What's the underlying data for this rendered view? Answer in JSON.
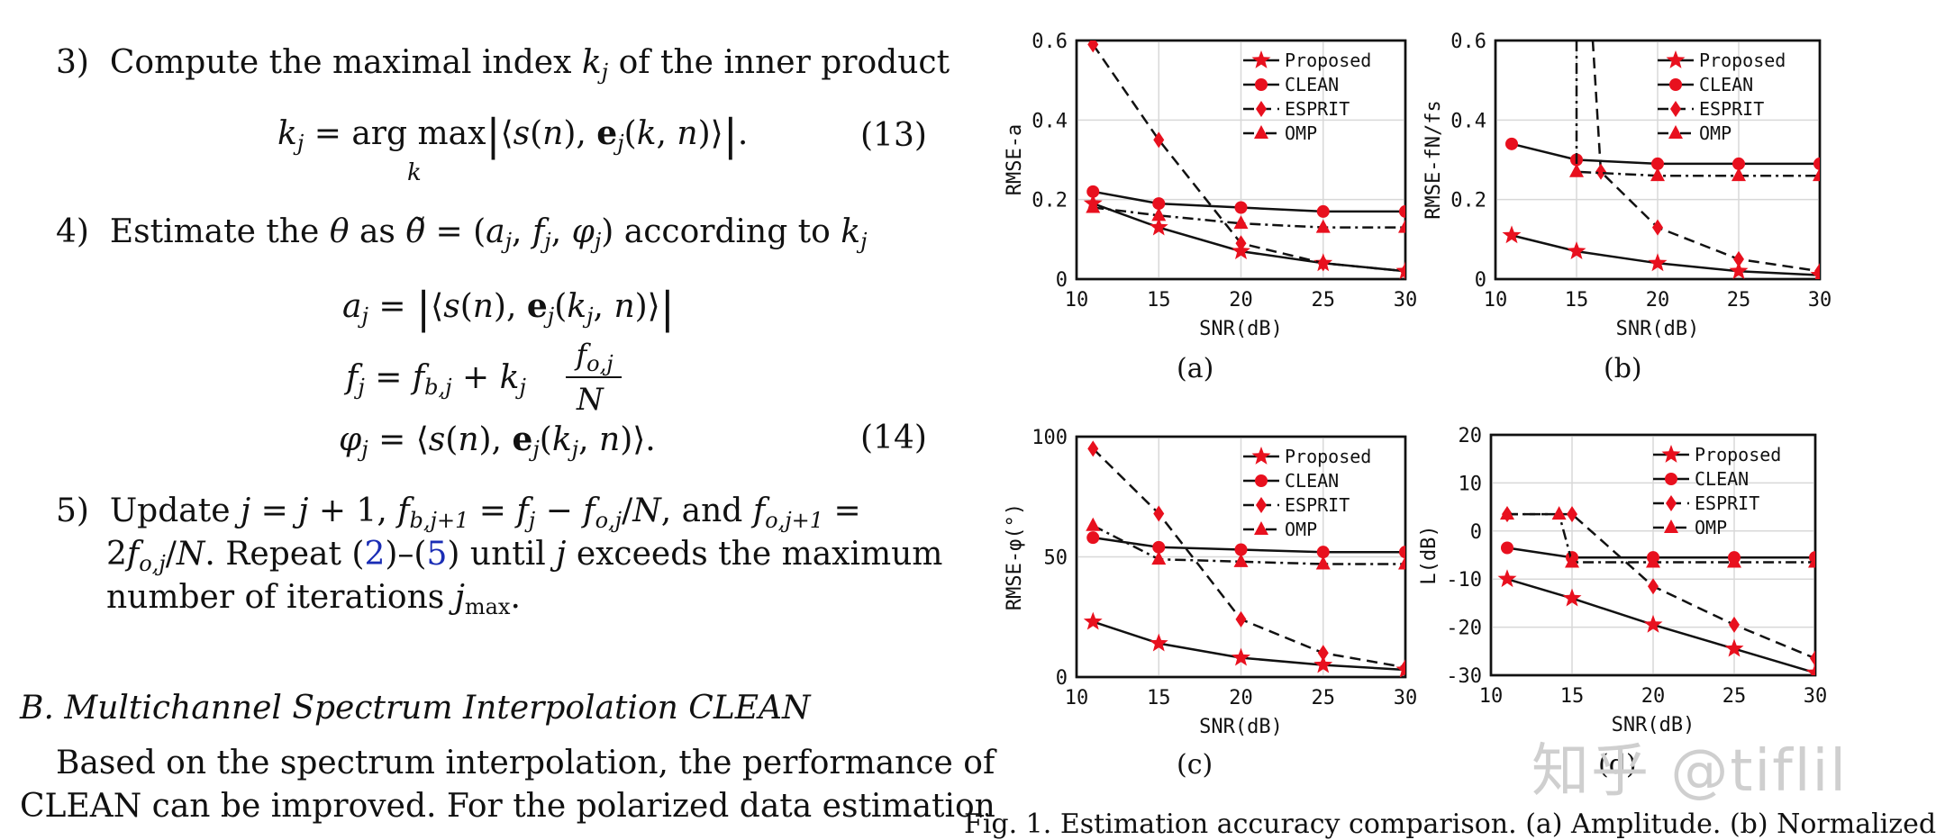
{
  "steps": {
    "s3_num": "3)",
    "s3_text_a": "Compute the maximal index",
    "s3_text_b": "of the inner product",
    "eq13_num": "(13)",
    "s4_num": "4)",
    "s4_text_a": "Estimate the",
    "s4_text_b": "according to",
    "eq14_num": "(14)",
    "s5_num": "5)",
    "s5_text_a": "Update",
    "s5_text_b": "and",
    "s5_text_c": ". Repeat (",
    "s5_ref1": "2",
    "s5_text_d": ")–(",
    "s5_ref2": "5",
    "s5_text_e": ") until",
    "s5_text_f": "exceeds the maximum",
    "s5_text_g": "number of iterations"
  },
  "section": {
    "title": "B. Multichannel Spectrum Interpolation CLEAN"
  },
  "paragraph": {
    "line1": "Based on the spectrum interpolation, the performance of",
    "line2": "CLEAN can be improved. For the polarized data estimation"
  },
  "figure": {
    "caption": "Fig. 1.     Estimation accuracy comparison. (a) Amplitude. (b) Normalized",
    "sublabels": [
      "(a)",
      "(b)",
      "(c)",
      "(d)"
    ],
    "watermark": "知乎 @tiflil"
  },
  "chart_data": [
    {
      "type": "line",
      "panel": "a",
      "xlabel": "SNR(dB)",
      "ylabel": "RMSE-a",
      "xlim": [
        10,
        30
      ],
      "ylim": [
        0,
        0.6
      ],
      "xticks": [
        "10",
        "15",
        "20",
        "25",
        "30"
      ],
      "yticks": [
        "0",
        "0.2",
        "0.4",
        "0.6"
      ],
      "grid": true,
      "legend_position": "top-right",
      "series": [
        {
          "name": "Proposed",
          "marker": "star",
          "dash": "solid",
          "x": [
            11,
            15,
            20,
            25,
            30
          ],
          "y": [
            0.19,
            0.13,
            0.07,
            0.04,
            0.02
          ]
        },
        {
          "name": "CLEAN",
          "marker": "circle",
          "dash": "solid",
          "x": [
            11,
            15,
            20,
            25,
            30
          ],
          "y": [
            0.22,
            0.19,
            0.18,
            0.17,
            0.17
          ]
        },
        {
          "name": "ESPRIT",
          "marker": "diamond",
          "dash": "dashed",
          "x": [
            11,
            15,
            20,
            25,
            30
          ],
          "y": [
            0.59,
            0.35,
            0.09,
            0.04,
            0.02
          ]
        },
        {
          "name": "OMP",
          "marker": "triangle",
          "dash": "dashdot",
          "x": [
            11,
            15,
            20,
            25,
            30
          ],
          "y": [
            0.18,
            0.16,
            0.14,
            0.13,
            0.13
          ]
        }
      ]
    },
    {
      "type": "line",
      "panel": "b",
      "xlabel": "SNR(dB)",
      "ylabel": "RMSE-fN/fs",
      "xlim": [
        10,
        30
      ],
      "ylim": [
        0,
        0.6
      ],
      "xticks": [
        "10",
        "15",
        "20",
        "25",
        "30"
      ],
      "yticks": [
        "0",
        "0.2",
        "0.4",
        "0.6"
      ],
      "grid": true,
      "legend_position": "top-right",
      "series": [
        {
          "name": "Proposed",
          "marker": "star",
          "dash": "solid",
          "x": [
            11,
            15,
            20,
            25,
            30
          ],
          "y": [
            0.11,
            0.07,
            0.04,
            0.02,
            0.01
          ]
        },
        {
          "name": "CLEAN",
          "marker": "circle",
          "dash": "solid",
          "x": [
            11,
            15,
            20,
            25,
            30
          ],
          "y": [
            0.34,
            0.3,
            0.29,
            0.29,
            0.29
          ]
        },
        {
          "name": "ESPRIT",
          "marker": "diamond",
          "dash": "dashed",
          "x": [
            16,
            16.5,
            20,
            25,
            30
          ],
          "y": [
            0.6,
            0.27,
            0.13,
            0.05,
            0.02
          ]
        },
        {
          "name": "OMP",
          "marker": "triangle",
          "dash": "dashdot",
          "x": [
            15,
            15,
            20,
            25,
            30
          ],
          "y": [
            0.6,
            0.27,
            0.26,
            0.26,
            0.26
          ]
        }
      ]
    },
    {
      "type": "line",
      "panel": "c",
      "xlabel": "SNR(dB)",
      "ylabel": "RMSE-φ(°)",
      "xlim": [
        10,
        30
      ],
      "ylim": [
        0,
        100
      ],
      "xticks": [
        "10",
        "15",
        "20",
        "25",
        "30"
      ],
      "yticks": [
        "0",
        "50",
        "100"
      ],
      "grid": true,
      "legend_position": "top-right",
      "series": [
        {
          "name": "Proposed",
          "marker": "star",
          "dash": "solid",
          "x": [
            11,
            15,
            20,
            25,
            30
          ],
          "y": [
            23,
            14,
            8,
            5,
            3
          ]
        },
        {
          "name": "CLEAN",
          "marker": "circle",
          "dash": "solid",
          "x": [
            11,
            15,
            20,
            25,
            30
          ],
          "y": [
            58,
            54,
            53,
            52,
            52
          ]
        },
        {
          "name": "ESPRIT",
          "marker": "diamond",
          "dash": "dashed",
          "x": [
            11,
            15,
            20,
            25,
            30
          ],
          "y": [
            95,
            68,
            24,
            10,
            4
          ]
        },
        {
          "name": "OMP",
          "marker": "triangle",
          "dash": "dashdot",
          "x": [
            11,
            15,
            20,
            25,
            30
          ],
          "y": [
            63,
            49,
            48,
            47,
            47
          ]
        }
      ]
    },
    {
      "type": "line",
      "panel": "d",
      "xlabel": "SNR(dB)",
      "ylabel": "L(dB)",
      "xlim": [
        10,
        30
      ],
      "ylim": [
        -30,
        20
      ],
      "xticks": [
        "10",
        "15",
        "20",
        "25",
        "30"
      ],
      "yticks": [
        "-30",
        "-20",
        "-10",
        "0",
        "10",
        "20"
      ],
      "grid": true,
      "legend_position": "top-right",
      "series": [
        {
          "name": "Proposed",
          "marker": "star",
          "dash": "solid",
          "x": [
            11,
            15,
            20,
            25,
            30
          ],
          "y": [
            -10,
            -14,
            -19.5,
            -24.5,
            -29.5
          ]
        },
        {
          "name": "CLEAN",
          "marker": "circle",
          "dash": "solid",
          "x": [
            11,
            15,
            20,
            25,
            30
          ],
          "y": [
            -3.5,
            -5.5,
            -5.5,
            -5.5,
            -5.5
          ]
        },
        {
          "name": "ESPRIT",
          "marker": "diamond",
          "dash": "dashed",
          "x": [
            11,
            15,
            20,
            25,
            30
          ],
          "y": [
            3.5,
            3.5,
            -11.5,
            -19.5,
            -26.5
          ]
        },
        {
          "name": "OMP",
          "marker": "triangle",
          "dash": "dashdot",
          "x": [
            11,
            14.2,
            15,
            20,
            25,
            30
          ],
          "y": [
            3.5,
            3.5,
            -6.5,
            -6.5,
            -6.5,
            -6.5
          ]
        }
      ]
    }
  ]
}
